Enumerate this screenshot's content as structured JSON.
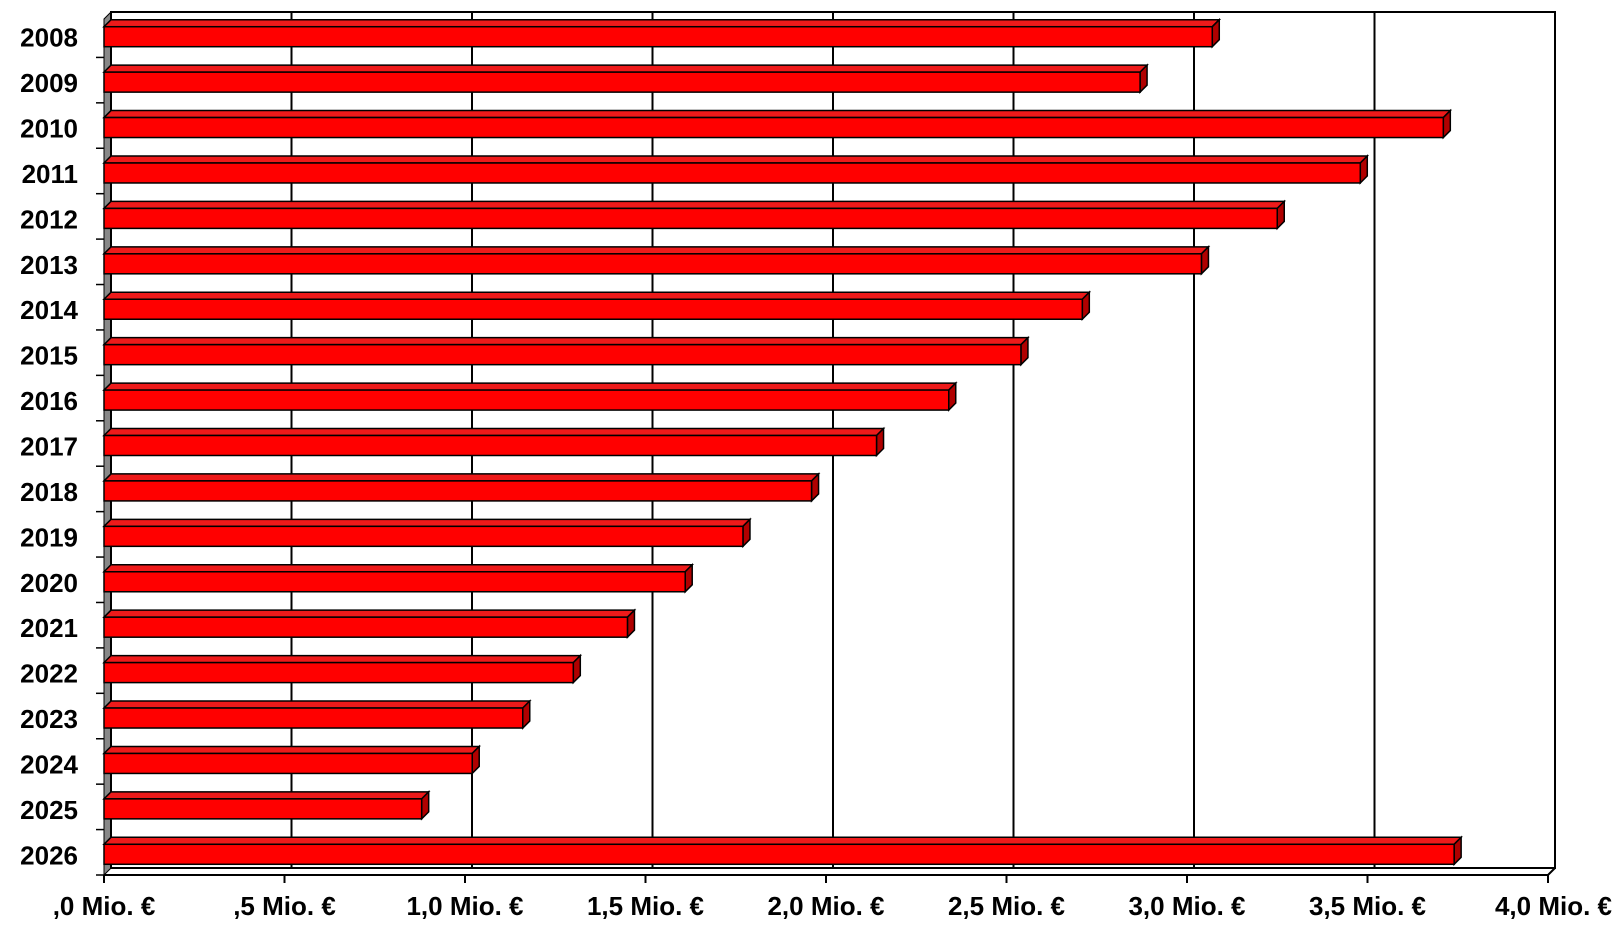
{
  "chart_data": {
    "type": "bar",
    "orientation": "horizontal",
    "categories": [
      "2008",
      "2009",
      "2010",
      "2011",
      "2012",
      "2013",
      "2014",
      "2015",
      "2016",
      "2017",
      "2018",
      "2019",
      "2020",
      "2021",
      "2022",
      "2023",
      "2024",
      "2025",
      "2026"
    ],
    "values": [
      3.07,
      2.87,
      3.71,
      3.48,
      3.25,
      3.04,
      2.71,
      2.54,
      2.34,
      2.14,
      1.96,
      1.77,
      1.61,
      1.45,
      1.3,
      1.16,
      1.02,
      0.88,
      3.74
    ],
    "xlim": [
      0,
      4.0
    ],
    "xticks": [
      0,
      0.5,
      1.0,
      1.5,
      2.0,
      2.5,
      3.0,
      3.5,
      4.0
    ],
    "xtick_labels": [
      ",0 Mio. €",
      ",5 Mio. €",
      "1,0 Mio. €",
      "1,5 Mio. €",
      "2,0 Mio. €",
      "2,5 Mio. €",
      "3,0 Mio. €",
      "3,5 Mio. €",
      "4,0 Mio. €"
    ],
    "title": "",
    "xlabel": "",
    "ylabel": "",
    "grid": "vertical",
    "legend": "none",
    "colors": {
      "bar": "#ff0000",
      "bar_top": "#ee1a1a",
      "bar_side": "#b00000",
      "outline": "#000000",
      "grid": "#000000",
      "wall": "#888888"
    }
  }
}
